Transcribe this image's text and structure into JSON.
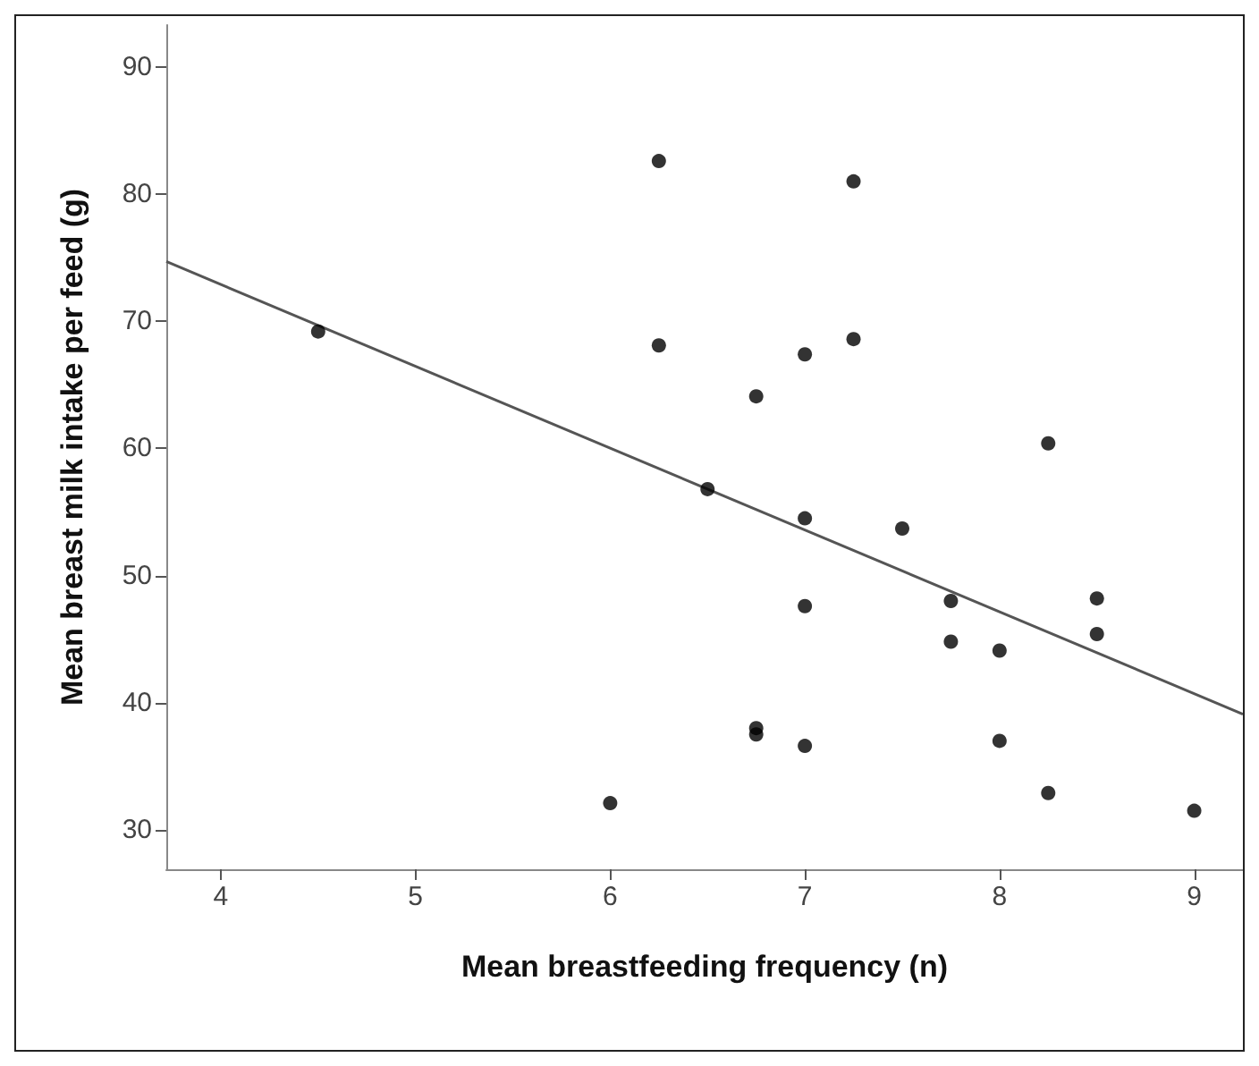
{
  "chart_data": {
    "type": "scatter",
    "xlabel": "Mean breastfeeding frequency (n)",
    "ylabel": "Mean breast milk intake per feed (g)",
    "xlim": [
      3.72,
      9.25
    ],
    "ylim": [
      26.9,
      93.3
    ],
    "xticks": [
      4,
      5,
      6,
      7,
      8,
      9
    ],
    "yticks": [
      30,
      40,
      50,
      60,
      70,
      80,
      90
    ],
    "grid": false,
    "series": [
      {
        "color": "#000000",
        "marker": "circle",
        "x": [
          4.5,
          6,
          6.25,
          6.25,
          6.5,
          6.75,
          6.75,
          6.75,
          7,
          7,
          7,
          7,
          7.25,
          7.25,
          7.5,
          7.75,
          7.75,
          8,
          8,
          8.25,
          8.25,
          8.5,
          8.5,
          9
        ],
        "values": [
          69.2,
          32.1,
          82.6,
          68.1,
          56.8,
          64.1,
          38.0,
          37.5,
          67.4,
          54.5,
          47.6,
          36.6,
          81.0,
          68.6,
          53.7,
          48.0,
          44.8,
          44.1,
          37.0,
          60.4,
          32.9,
          48.2,
          45.4,
          31.5
        ]
      },
      {
        "type": "line",
        "marker": "none",
        "color": "#555555",
        "x": [
          3.72,
          9.25
        ],
        "values": [
          74.7,
          39.1
        ]
      }
    ]
  }
}
